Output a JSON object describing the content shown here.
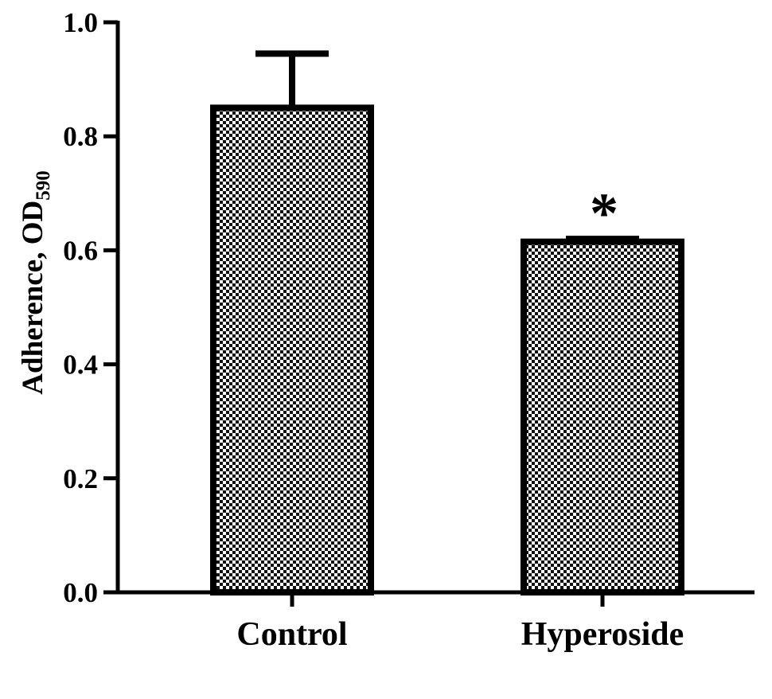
{
  "chart_data": {
    "type": "bar",
    "categories": [
      "Control",
      "Hyperoside"
    ],
    "values": [
      0.85,
      0.615
    ],
    "error_bars": [
      0.095,
      0.005
    ],
    "annotations": [
      {
        "category": "Hyperoside",
        "text": "*"
      }
    ],
    "title": "",
    "xlabel": "",
    "ylabel": "Adherence, OD",
    "ylabel_subscript": "590",
    "ylim": [
      0.0,
      1.0
    ],
    "y_ticks": [
      0.0,
      0.2,
      0.4,
      0.6,
      0.8,
      1.0
    ],
    "y_tick_labels": [
      "0.0",
      "0.2",
      "0.4",
      "0.6",
      "0.8",
      "1.0"
    ],
    "grid": false,
    "legend": "none",
    "bar_fill": "checkered",
    "colors": {
      "bar_stroke": "#000000",
      "pattern_dark": "#111111",
      "pattern_light": "#ffffff",
      "axis": "#000000"
    }
  }
}
